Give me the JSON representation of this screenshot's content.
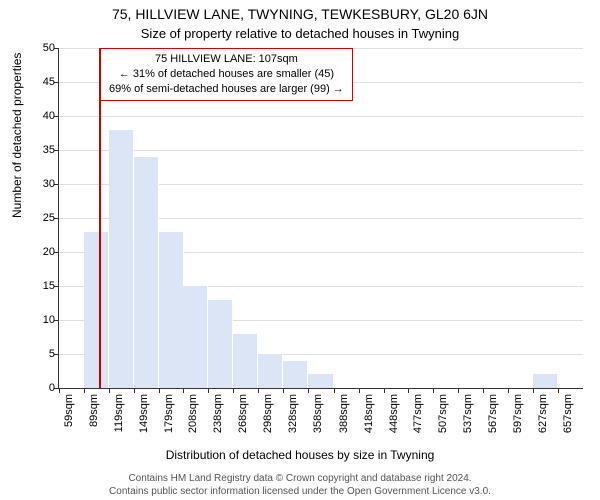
{
  "header": {
    "address": "75, HILLVIEW LANE, TWYNING, TEWKESBURY, GL20 6JN",
    "subtitle": "Size of property relative to detached houses in Twyning"
  },
  "callout": {
    "line1": "75 HILLVIEW LANE: 107sqm",
    "line2": "← 31% of detached houses are smaller (45)",
    "line3": "69% of semi-detached houses are larger (99) →",
    "border_color": "#cc0000"
  },
  "chart": {
    "type": "histogram",
    "ylabel": "Number of detached properties",
    "xlabel": "Distribution of detached houses by size in Twyning",
    "ylim": [
      0,
      50
    ],
    "ytick_step": 5,
    "yticks": [
      0,
      5,
      10,
      15,
      20,
      25,
      30,
      35,
      40,
      45,
      50
    ],
    "x_categories": [
      "59sqm",
      "89sqm",
      "119sqm",
      "149sqm",
      "179sqm",
      "208sqm",
      "238sqm",
      "268sqm",
      "298sqm",
      "328sqm",
      "358sqm",
      "388sqm",
      "418sqm",
      "448sqm",
      "477sqm",
      "507sqm",
      "537sqm",
      "567sqm",
      "597sqm",
      "627sqm",
      "657sqm"
    ],
    "bar_width_sqm": 30,
    "values": [
      0,
      23,
      38,
      34,
      23,
      15,
      13,
      8,
      5,
      4,
      2,
      0,
      0,
      0,
      0,
      0,
      0,
      0,
      0,
      2,
      0
    ],
    "bar_color": "#dbe5f6",
    "grid_color": "#e0e0e0",
    "axis_color": "#333333",
    "background_color": "#ffffff",
    "marker": {
      "value_sqm": 107,
      "color": "#cc0000"
    },
    "x_range_sqm": [
      59,
      687
    ]
  },
  "footer": {
    "line1": "Contains HM Land Registry data © Crown copyright and database right 2024.",
    "line2": "Contains public sector information licensed under the Open Government Licence v3.0."
  }
}
